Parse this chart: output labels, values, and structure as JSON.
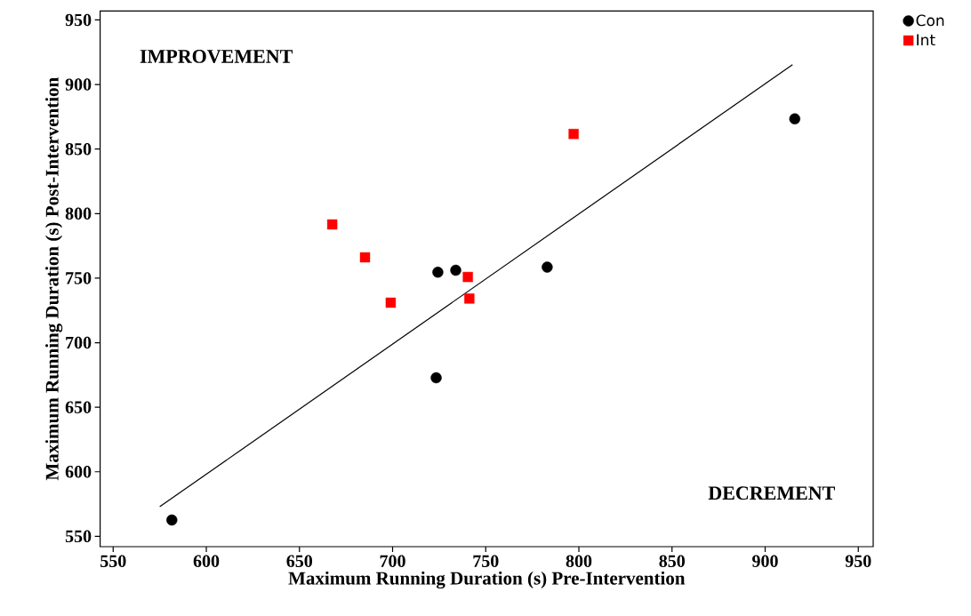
{
  "chart_data": {
    "type": "scatter",
    "xlabel": "Maximum Running Duration (s) Pre-Intervention",
    "ylabel": "Maximum Running Duration (s) Post-Intervention",
    "xlim": [
      543,
      958
    ],
    "ylim": [
      542,
      957
    ],
    "xticks": [
      550,
      600,
      650,
      700,
      750,
      800,
      850,
      900,
      950
    ],
    "yticks": [
      550,
      600,
      650,
      700,
      750,
      800,
      850,
      900,
      950
    ],
    "grid": false,
    "legend": "top right",
    "annotations": [
      "IMPROVEMENT",
      "DECREMENT"
    ],
    "series": [
      {
        "name": "Con",
        "color": "#000000",
        "marker": "circle",
        "x": [
          581.5,
          723.4,
          724.3,
          733.9,
          783.0,
          915.9
        ],
        "values": [
          562.6,
          672.8,
          754.6,
          756.1,
          758.5,
          873.4
        ]
      },
      {
        "name": "Int",
        "color": "#ff0000",
        "marker": "square",
        "x": [
          667.6,
          685.2,
          699.0,
          740.4,
          741.2,
          797.2
        ],
        "values": [
          791.6,
          766.1,
          731.0,
          750.9,
          734.2,
          861.7
        ]
      },
      {
        "type": "line",
        "color": "#000000",
        "marker": "none",
        "line_style": "solid",
        "x": [
          575,
          914.7
        ],
        "values": [
          572.9,
          915.4
        ]
      }
    ]
  }
}
